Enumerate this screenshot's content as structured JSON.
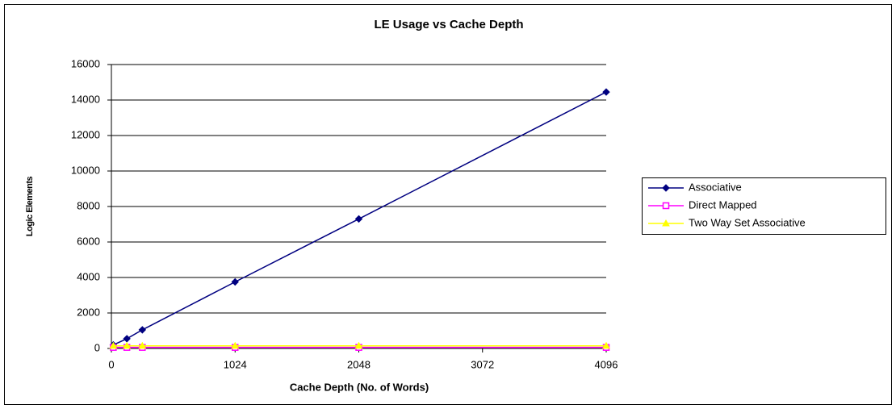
{
  "chart_data": {
    "type": "line",
    "title": "LE Usage vs Cache Depth",
    "xlabel": "Cache Depth (No. of Words)",
    "ylabel": "Logic Elements",
    "x": [
      16,
      128,
      256,
      1024,
      2048,
      4096
    ],
    "series": [
      {
        "name": "Associative",
        "color": "#000080",
        "marker": "diamond",
        "values": [
          200,
          550,
          1050,
          3750,
          7300,
          14450
        ]
      },
      {
        "name": "Direct Mapped",
        "color": "#ff00ff",
        "marker": "square",
        "values": [
          60,
          60,
          60,
          60,
          60,
          60
        ]
      },
      {
        "name": "Two Way Set Associative",
        "color": "#ffff00",
        "marker": "triangle",
        "values": [
          150,
          150,
          150,
          150,
          150,
          150
        ]
      }
    ],
    "xlim": [
      0,
      4096
    ],
    "xticks": [
      0,
      1024,
      2048,
      3072,
      4096
    ],
    "ylim": [
      0,
      16000
    ],
    "yticks": [
      0,
      2000,
      4000,
      6000,
      8000,
      10000,
      12000,
      14000,
      16000
    ],
    "grid": true,
    "legend": "right"
  }
}
